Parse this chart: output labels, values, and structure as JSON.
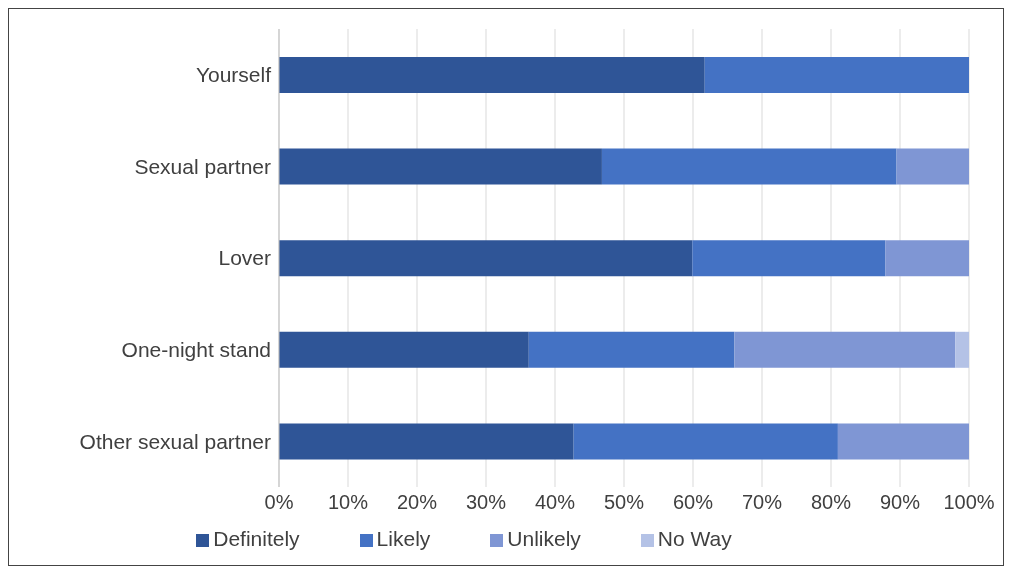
{
  "chart_data": {
    "type": "bar",
    "orientation": "horizontal",
    "stacked": true,
    "categories": [
      "Yourself",
      "Sexual partner",
      "Lover",
      "One-night stand",
      "Other sexual partner"
    ],
    "series": [
      {
        "name": "Definitely",
        "color": "#2f5597",
        "values": [
          61.7,
          46.8,
          59.9,
          36.2,
          42.7
        ]
      },
      {
        "name": "Likely",
        "color": "#4472c4",
        "values": [
          38.3,
          42.7,
          28.0,
          29.8,
          38.3
        ]
      },
      {
        "name": "Unlikely",
        "color": "#7f96d4",
        "values": [
          null,
          10.5,
          12.1,
          32.0,
          19.0
        ]
      },
      {
        "name": "No Way",
        "color": "#b4c2e6",
        "values": [
          null,
          null,
          null,
          2.0,
          null
        ]
      }
    ],
    "xlim": [
      0,
      100
    ],
    "xticks": [
      {
        "value": 0,
        "label": "0%"
      },
      {
        "value": 10,
        "label": "10%"
      },
      {
        "value": 20,
        "label": "20%"
      },
      {
        "value": 30,
        "label": "30%"
      },
      {
        "value": 40,
        "label": "40%"
      },
      {
        "value": 50,
        "label": "50%"
      },
      {
        "value": 60,
        "label": "60%"
      },
      {
        "value": 70,
        "label": "70%"
      },
      {
        "value": 80,
        "label": "80%"
      },
      {
        "value": 90,
        "label": "90%"
      },
      {
        "value": 100,
        "label": "100%"
      }
    ],
    "grid": "x",
    "legend": "bottom"
  }
}
